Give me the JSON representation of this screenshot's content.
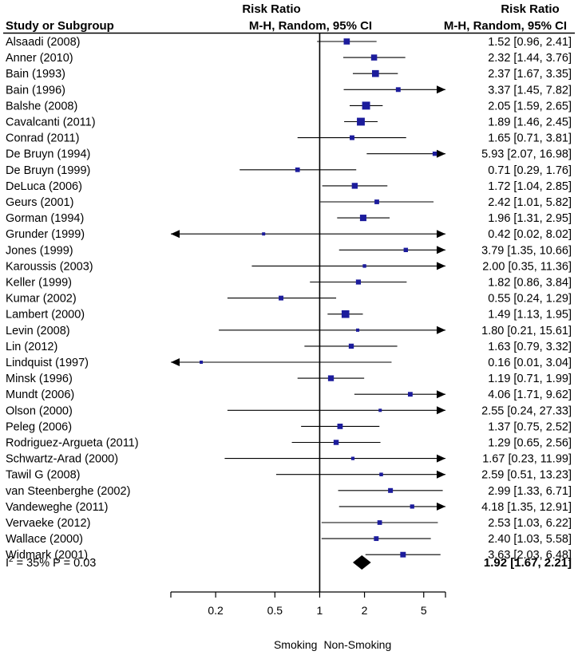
{
  "chart_data": {
    "type": "forest",
    "scale": "log",
    "xlim": [
      0.1,
      7
    ],
    "reference_line": 1,
    "headers": {
      "col1": "Study or Subgroup",
      "col2_line1": "Risk Ratio",
      "col2_line2": "M-H, Random, 95% CI",
      "col3_line1": "Risk Ratio",
      "col3_line2": "M-H, Random, 95% CI"
    },
    "studies": [
      {
        "label": "Alsaadi (2008)",
        "rr": 1.52,
        "lo": 0.96,
        "hi": 2.41,
        "text": "1.52 [0.96, 2.41]"
      },
      {
        "label": "Anner (2010)",
        "rr": 2.32,
        "lo": 1.44,
        "hi": 3.76,
        "text": "2.32 [1.44, 3.76]"
      },
      {
        "label": "Bain (1993)",
        "rr": 2.37,
        "lo": 1.67,
        "hi": 3.35,
        "text": "2.37 [1.67, 3.35]"
      },
      {
        "label": "Bain (1996)",
        "rr": 3.37,
        "lo": 1.45,
        "hi": 7.82,
        "text": "3.37 [1.45, 7.82]"
      },
      {
        "label": "Balshe (2008)",
        "rr": 2.05,
        "lo": 1.59,
        "hi": 2.65,
        "text": "2.05 [1.59, 2.65]"
      },
      {
        "label": "Cavalcanti (2011)",
        "rr": 1.89,
        "lo": 1.46,
        "hi": 2.45,
        "text": "1.89 [1.46, 2.45]"
      },
      {
        "label": "Conrad (2011)",
        "rr": 1.65,
        "lo": 0.71,
        "hi": 3.81,
        "text": "1.65 [0.71, 3.81]"
      },
      {
        "label": "De Bruyn (1994)",
        "rr": 5.93,
        "lo": 2.07,
        "hi": 16.98,
        "text": "5.93 [2.07, 16.98]"
      },
      {
        "label": "De Bruyn (1999)",
        "rr": 0.71,
        "lo": 0.29,
        "hi": 1.76,
        "text": "0.71 [0.29, 1.76]"
      },
      {
        "label": "DeLuca (2006)",
        "rr": 1.72,
        "lo": 1.04,
        "hi": 2.85,
        "text": "1.72 [1.04, 2.85]"
      },
      {
        "label": "Geurs (2001)",
        "rr": 2.42,
        "lo": 1.01,
        "hi": 5.82,
        "text": "2.42 [1.01, 5.82]"
      },
      {
        "label": "Gorman (1994)",
        "rr": 1.96,
        "lo": 1.31,
        "hi": 2.95,
        "text": "1.96 [1.31, 2.95]"
      },
      {
        "label": "Grunder (1999)",
        "rr": 0.42,
        "lo": 0.02,
        "hi": 8.02,
        "text": "0.42 [0.02, 8.02]"
      },
      {
        "label": "Jones (1999)",
        "rr": 3.79,
        "lo": 1.35,
        "hi": 10.66,
        "text": "3.79 [1.35, 10.66]"
      },
      {
        "label": "Karoussis (2003)",
        "rr": 2.0,
        "lo": 0.35,
        "hi": 11.36,
        "text": "2.00 [0.35, 11.36]"
      },
      {
        "label": "Keller (1999)",
        "rr": 1.82,
        "lo": 0.86,
        "hi": 3.84,
        "text": "1.82 [0.86, 3.84]"
      },
      {
        "label": "Kumar (2002)",
        "rr": 0.55,
        "lo": 0.24,
        "hi": 1.29,
        "text": "0.55 [0.24, 1.29]"
      },
      {
        "label": "Lambert (2000)",
        "rr": 1.49,
        "lo": 1.13,
        "hi": 1.95,
        "text": "1.49 [1.13, 1.95]"
      },
      {
        "label": "Levin (2008)",
        "rr": 1.8,
        "lo": 0.21,
        "hi": 15.61,
        "text": "1.80 [0.21, 15.61]"
      },
      {
        "label": "Lin (2012)",
        "rr": 1.63,
        "lo": 0.79,
        "hi": 3.32,
        "text": "1.63 [0.79, 3.32]"
      },
      {
        "label": "Lindquist (1997)",
        "rr": 0.16,
        "lo": 0.01,
        "hi": 3.04,
        "text": "0.16 [0.01, 3.04]"
      },
      {
        "label": "Minsk (1996)",
        "rr": 1.19,
        "lo": 0.71,
        "hi": 1.99,
        "text": "1.19 [0.71, 1.99]"
      },
      {
        "label": "Mundt (2006)",
        "rr": 4.06,
        "lo": 1.71,
        "hi": 9.62,
        "text": "4.06 [1.71, 9.62]"
      },
      {
        "label": "Olson (2000)",
        "rr": 2.55,
        "lo": 0.24,
        "hi": 27.33,
        "text": "2.55 [0.24, 27.33]"
      },
      {
        "label": "Peleg (2006)",
        "rr": 1.37,
        "lo": 0.75,
        "hi": 2.52,
        "text": "1.37 [0.75, 2.52]"
      },
      {
        "label": "Rodriguez-Argueta (2011)",
        "rr": 1.29,
        "lo": 0.65,
        "hi": 2.56,
        "text": "1.29 [0.65, 2.56]"
      },
      {
        "label": "Schwartz-Arad (2000)",
        "rr": 1.67,
        "lo": 0.23,
        "hi": 11.99,
        "text": "1.67 [0.23, 11.99]"
      },
      {
        "label": "Tawil G (2008)",
        "rr": 2.59,
        "lo": 0.51,
        "hi": 13.23,
        "text": "2.59 [0.51, 13.23]"
      },
      {
        "label": "van Steenberghe (2002)",
        "rr": 2.99,
        "lo": 1.33,
        "hi": 6.71,
        "text": "2.99 [1.33, 6.71]"
      },
      {
        "label": "Vandeweghe  (2011)",
        "rr": 4.18,
        "lo": 1.35,
        "hi": 12.91,
        "text": "4.18 [1.35, 12.91]"
      },
      {
        "label": "Vervaeke (2012)",
        "rr": 2.53,
        "lo": 1.03,
        "hi": 6.22,
        "text": "2.53 [1.03, 6.22]"
      },
      {
        "label": "Wallace (2000)",
        "rr": 2.4,
        "lo": 1.03,
        "hi": 5.58,
        "text": "2.40 [1.03, 5.58]"
      },
      {
        "label": "Widmark (2001)",
        "rr": 3.63,
        "lo": 2.03,
        "hi": 6.48,
        "text": "3.63 [2.03, 6.48]"
      }
    ],
    "pooled": {
      "rr": 1.92,
      "lo": 1.67,
      "hi": 2.21,
      "text": "1.92 [1.67, 2.21]",
      "het_i2_label": "I",
      "het_i2_sup": "2",
      "het_rest": " = 35%  P = 0.03"
    },
    "ticks": [
      {
        "value": 0.2,
        "label": "0.2"
      },
      {
        "value": 0.5,
        "label": "0.5"
      },
      {
        "value": 1,
        "label": "1"
      },
      {
        "value": 2,
        "label": "2"
      },
      {
        "value": 5,
        "label": "5"
      }
    ],
    "favours_left": "Smoking",
    "favours_right": "Non-Smoking",
    "colors": {
      "marker": "#1c1c9c",
      "line": "#000000",
      "pooled": "#000000"
    }
  }
}
